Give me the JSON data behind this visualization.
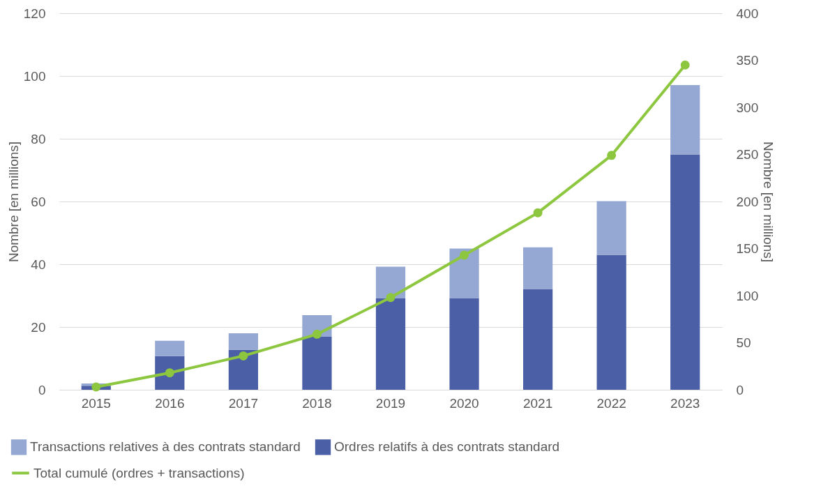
{
  "chart_data": {
    "type": "bar",
    "stacked": true,
    "categories": [
      "2015",
      "2016",
      "2017",
      "2018",
      "2019",
      "2020",
      "2021",
      "2022",
      "2023"
    ],
    "ylabel": "Nombre [en millions]",
    "y2label": "Nombre [en millions]",
    "ylim": [
      0,
      120
    ],
    "yticks": [
      0,
      20,
      40,
      60,
      80,
      100,
      120
    ],
    "y2lim": [
      0,
      400
    ],
    "y2ticks": [
      0,
      50,
      100,
      150,
      200,
      250,
      300,
      350,
      400
    ],
    "grid": "y",
    "legend": "bottom",
    "series": [
      {
        "name": "Ordres relatifs à des contrats standard",
        "color": "#4a5fa6",
        "values": [
          1.3,
          10.7,
          12.7,
          16.9,
          29.2,
          29.2,
          32.1,
          43,
          75
        ]
      },
      {
        "name": "Transactions relatives à des contrats standard",
        "color": "#95a7d3",
        "values": [
          0.7,
          4.9,
          5.3,
          6.9,
          10,
          15.8,
          13.3,
          17.1,
          22.1
        ]
      },
      {
        "name": "Total cumulé (ordres + transactions)",
        "color": "#8dc63f",
        "type": "line",
        "axis": "y2",
        "marker": "circle",
        "line_style": "solid",
        "values": [
          3,
          18,
          36,
          59,
          98,
          143,
          188,
          249,
          345
        ]
      }
    ]
  }
}
